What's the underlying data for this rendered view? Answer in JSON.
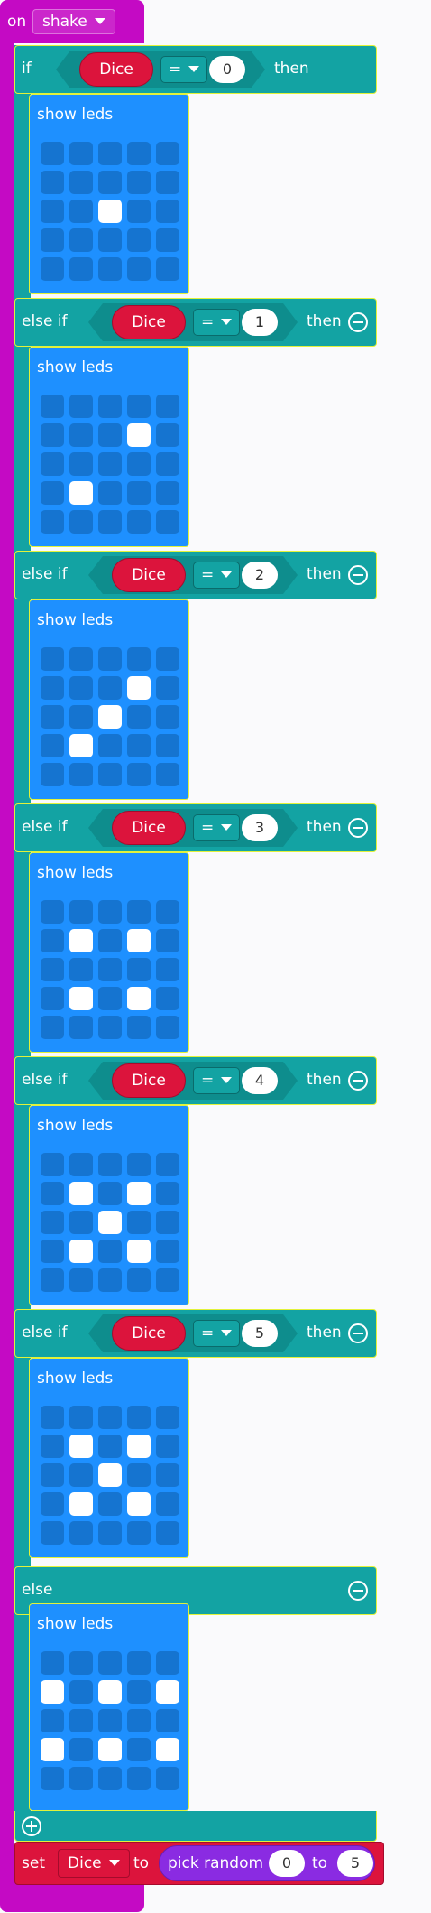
{
  "event": {
    "on_label": "on",
    "gesture": "shake"
  },
  "if_block": {
    "if_label": "if",
    "then_label": "then",
    "else_if_label": "else if",
    "else_label": "else"
  },
  "show_leds_label": "show leds",
  "condition": {
    "variable": "Dice",
    "operator": "="
  },
  "branches": [
    {
      "kind": "if",
      "value": "0",
      "leds": [
        [
          0,
          0,
          0,
          0,
          0
        ],
        [
          0,
          0,
          0,
          0,
          0
        ],
        [
          0,
          0,
          1,
          0,
          0
        ],
        [
          0,
          0,
          0,
          0,
          0
        ],
        [
          0,
          0,
          0,
          0,
          0
        ]
      ]
    },
    {
      "kind": "else if",
      "value": "1",
      "leds": [
        [
          0,
          0,
          0,
          0,
          0
        ],
        [
          0,
          0,
          0,
          1,
          0
        ],
        [
          0,
          0,
          0,
          0,
          0
        ],
        [
          0,
          1,
          0,
          0,
          0
        ],
        [
          0,
          0,
          0,
          0,
          0
        ]
      ]
    },
    {
      "kind": "else if",
      "value": "2",
      "leds": [
        [
          0,
          0,
          0,
          0,
          0
        ],
        [
          0,
          0,
          0,
          1,
          0
        ],
        [
          0,
          0,
          1,
          0,
          0
        ],
        [
          0,
          1,
          0,
          0,
          0
        ],
        [
          0,
          0,
          0,
          0,
          0
        ]
      ]
    },
    {
      "kind": "else if",
      "value": "3",
      "leds": [
        [
          0,
          0,
          0,
          0,
          0
        ],
        [
          0,
          1,
          0,
          1,
          0
        ],
        [
          0,
          0,
          0,
          0,
          0
        ],
        [
          0,
          1,
          0,
          1,
          0
        ],
        [
          0,
          0,
          0,
          0,
          0
        ]
      ]
    },
    {
      "kind": "else if",
      "value": "4",
      "leds": [
        [
          0,
          0,
          0,
          0,
          0
        ],
        [
          0,
          1,
          0,
          1,
          0
        ],
        [
          0,
          0,
          1,
          0,
          0
        ],
        [
          0,
          1,
          0,
          1,
          0
        ],
        [
          0,
          0,
          0,
          0,
          0
        ]
      ]
    },
    {
      "kind": "else if",
      "value": "5",
      "leds": [
        [
          0,
          0,
          0,
          0,
          0
        ],
        [
          0,
          1,
          0,
          1,
          0
        ],
        [
          0,
          0,
          1,
          0,
          0
        ],
        [
          0,
          1,
          0,
          1,
          0
        ],
        [
          0,
          0,
          0,
          0,
          0
        ]
      ]
    },
    {
      "kind": "else",
      "value": "",
      "leds": [
        [
          0,
          0,
          0,
          0,
          0
        ],
        [
          1,
          0,
          1,
          0,
          1
        ],
        [
          0,
          0,
          0,
          0,
          0
        ],
        [
          1,
          0,
          1,
          0,
          1
        ],
        [
          0,
          0,
          0,
          0,
          0
        ]
      ]
    }
  ],
  "set_block": {
    "set_label": "set",
    "variable": "Dice",
    "to_label": "to",
    "random_label": "pick random",
    "from": "0",
    "to_word": "to",
    "max": "5"
  },
  "colors": {
    "event": "#c40ac4",
    "logic": "#13a3a3",
    "leds": "#1e90ff",
    "variable": "#dc143c",
    "math": "#8a2be2"
  },
  "icons": {
    "remove": "minus-circle-icon",
    "add": "plus-circle-icon",
    "dropdown": "caret-down-icon"
  }
}
